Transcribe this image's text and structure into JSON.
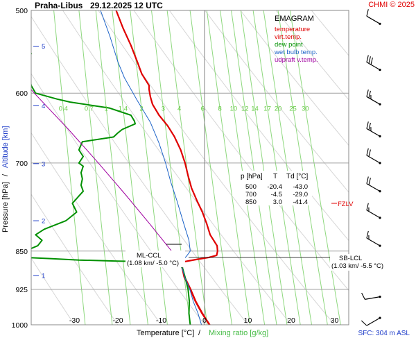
{
  "header": {
    "station": "Praha-Libus",
    "datetime": "29.12.2025 12 UTC",
    "credit": "CHMI © 2025"
  },
  "legend": {
    "title": "EMAGRAM",
    "items": [
      {
        "label": "temperature",
        "color": "#e00000"
      },
      {
        "label": "virt.temp.",
        "color": "#e00000"
      },
      {
        "label": "dew point",
        "color": "#009000"
      },
      {
        "label": "wet bulb temp.",
        "color": "#1e64c8"
      },
      {
        "label": "udpraft v.temp.",
        "color": "#a000a0"
      }
    ]
  },
  "table": {
    "headers": [
      "p [hPa]",
      "T",
      "Td [°C]"
    ],
    "rows": [
      [
        "500",
        "-20.4",
        "-43.0"
      ],
      [
        "700",
        "-4.5",
        "-29.0"
      ],
      [
        "850",
        "3.0",
        "-41.4"
      ]
    ]
  },
  "annotations": {
    "fzlv": "FZLV",
    "ml_ccl_line1": "ML-CCL",
    "ml_ccl_line2": "(1.08 km/ -5.0 °C)",
    "sb_lcl_line1": "SB-LCL",
    "sb_lcl_line2": "(1.03 km/ -5.5 °C)",
    "sfc": "SFC: 304 m ASL"
  },
  "axes": {
    "xlabel_temp": "Temperature [°C]",
    "xlabel_sep": "/",
    "xlabel_mix": "Mixing ratio [g/kg]",
    "ylabel_pres": "Pressure [hPa]",
    "ylabel_sep": "/",
    "ylabel_alt": "Altitude [km]"
  },
  "chart_data": {
    "type": "line",
    "title": "EMAGRAM Praha-Libus 29.12.2025 12 UTC",
    "y_axis": "pressure_hPa",
    "ylim": [
      1000,
      500
    ],
    "xlim": [
      -40,
      33
    ],
    "pressure_ticks": [
      500,
      600,
      700,
      850,
      925,
      1000
    ],
    "temperature_ticks": [
      -30,
      -20,
      -10,
      0,
      10,
      20,
      30
    ],
    "altitude_ticks_km": [
      {
        "label": "1",
        "p": 897
      },
      {
        "label": "2",
        "p": 795
      },
      {
        "label": "3",
        "p": 701
      },
      {
        "label": "4",
        "p": 617
      },
      {
        "label": "5",
        "p": 541
      }
    ],
    "mixing_ratio_lines": [
      0.4,
      0.7,
      1,
      1.4,
      2,
      3,
      4,
      6,
      8,
      10,
      12,
      14,
      17,
      20,
      25,
      30
    ],
    "mixing_ratio_label_pressure": 620,
    "series": [
      {
        "name": "temperature",
        "color": "#e00000",
        "points": [
          [
            1000,
            1.2
          ],
          [
            990,
            0.5
          ],
          [
            975,
            -0.5
          ],
          [
            950,
            -2
          ],
          [
            925,
            -3.2
          ],
          [
            900,
            -4.6
          ],
          [
            880,
            -5.2
          ],
          [
            871,
            -5.2
          ],
          [
            866,
            -2
          ],
          [
            862,
            1
          ],
          [
            858,
            2.8
          ],
          [
            850,
            3.0
          ],
          [
            840,
            2.9
          ],
          [
            820,
            1.3
          ],
          [
            800,
            0.5
          ],
          [
            780,
            -0.5
          ],
          [
            760,
            -1.8
          ],
          [
            740,
            -3
          ],
          [
            720,
            -3.8
          ],
          [
            700,
            -4.5
          ],
          [
            680,
            -5.5
          ],
          [
            660,
            -7
          ],
          [
            645,
            -8.5
          ],
          [
            630,
            -10.5
          ],
          [
            615,
            -12
          ],
          [
            605,
            -12.5
          ],
          [
            595,
            -12.8
          ],
          [
            590,
            -12.8
          ],
          [
            575,
            -14.5
          ],
          [
            560,
            -15.5
          ],
          [
            540,
            -17
          ],
          [
            520,
            -18.8
          ],
          [
            500,
            -20.4
          ]
        ]
      },
      {
        "name": "virt.temp.",
        "color": "#e00000",
        "points": [
          [
            1000,
            1.0
          ],
          [
            975,
            -0.7
          ],
          [
            950,
            -2.2
          ],
          [
            925,
            -3.4
          ],
          [
            900,
            -4.8
          ],
          [
            880,
            -5.3
          ],
          [
            871,
            -5.3
          ]
        ]
      },
      {
        "name": "dew point",
        "color": "#009000",
        "points": [
          [
            1000,
            -3.3
          ],
          [
            975,
            -3.6
          ],
          [
            950,
            -3.5
          ],
          [
            925,
            -3.8
          ],
          [
            900,
            -4.5
          ],
          [
            885,
            -5
          ],
          [
            875,
            -5.6
          ],
          [
            871,
            -5.7
          ],
          [
            869,
            -20
          ],
          [
            867,
            -29
          ],
          [
            864,
            -36
          ],
          [
            861,
            -44
          ],
          [
            850,
            -41.4
          ],
          [
            840,
            -38.5
          ],
          [
            830,
            -37.5
          ],
          [
            820,
            -39
          ],
          [
            810,
            -37
          ],
          [
            795,
            -32
          ],
          [
            780,
            -29.5
          ],
          [
            765,
            -30.5
          ],
          [
            745,
            -28
          ],
          [
            735,
            -28.5
          ],
          [
            725,
            -28.2
          ],
          [
            715,
            -28.5
          ],
          [
            705,
            -28
          ],
          [
            700,
            -29
          ],
          [
            690,
            -28
          ],
          [
            680,
            -29
          ],
          [
            668,
            -28.2
          ],
          [
            661,
            -21
          ],
          [
            655,
            -20
          ],
          [
            650,
            -19
          ],
          [
            642,
            -16
          ],
          [
            638,
            -16.2
          ],
          [
            630,
            -17
          ],
          [
            620,
            -22
          ],
          [
            612,
            -31
          ],
          [
            608,
            -34
          ],
          [
            600,
            -39
          ],
          [
            590,
            -40
          ],
          [
            575,
            -40.5
          ],
          [
            560,
            -41
          ],
          [
            550,
            -40
          ],
          [
            545,
            -41
          ],
          [
            540,
            -41
          ],
          [
            530,
            -43
          ],
          [
            520,
            -43
          ],
          [
            500,
            -43.0
          ]
        ]
      },
      {
        "name": "wet bulb temp.",
        "color": "#1e64c8",
        "points": [
          [
            1000,
            -0.7
          ],
          [
            975,
            -1.5
          ],
          [
            950,
            -2.6
          ],
          [
            925,
            -3.4
          ],
          [
            900,
            -4.6
          ],
          [
            871,
            -5.5
          ],
          [
            860,
            -4.2
          ],
          [
            850,
            -3.3
          ],
          [
            830,
            -3.6
          ],
          [
            800,
            -4.8
          ],
          [
            760,
            -6.4
          ],
          [
            730,
            -7.8
          ],
          [
            700,
            -9
          ],
          [
            670,
            -10.5
          ],
          [
            640,
            -12.5
          ],
          [
            610,
            -15.5
          ],
          [
            580,
            -18.5
          ],
          [
            560,
            -20
          ],
          [
            530,
            -21.8
          ],
          [
            500,
            -24
          ]
        ]
      },
      {
        "name": "udpraft v.temp.",
        "color": "#a000a0",
        "points": [
          [
            871,
            -5.3
          ],
          [
            850,
            -7.6
          ],
          [
            800,
            -12.7
          ],
          [
            750,
            -18.3
          ],
          [
            700,
            -24.5
          ],
          [
            650,
            -31.4
          ],
          [
            600,
            -39.3
          ],
          [
            500,
            -56
          ]
        ]
      }
    ],
    "levels": [
      {
        "name": "FZLV",
        "p": 780
      },
      {
        "name": "ML-CCL",
        "p": 871,
        "t": -5.0
      },
      {
        "name": "SB-LCL",
        "p": 876,
        "t": -5.5
      }
    ],
    "wind_barbs": [
      {
        "p": 940,
        "dir_deg": 260,
        "speed_kt": 10
      },
      {
        "p": 985,
        "dir_deg": 240,
        "speed_kt": 10
      },
      {
        "p": 515,
        "dir_deg": 300,
        "speed_kt": 10
      },
      {
        "p": 570,
        "dir_deg": 300,
        "speed_kt": 30
      },
      {
        "p": 615,
        "dir_deg": 300,
        "speed_kt": 25
      },
      {
        "p": 660,
        "dir_deg": 300,
        "speed_kt": 25
      },
      {
        "p": 700,
        "dir_deg": 300,
        "speed_kt": 20
      },
      {
        "p": 745,
        "dir_deg": 300,
        "speed_kt": 20
      },
      {
        "p": 790,
        "dir_deg": 300,
        "speed_kt": 15
      },
      {
        "p": 840,
        "dir_deg": 300,
        "speed_kt": 15
      },
      {
        "p": 885,
        "dir_deg": 300,
        "speed_kt": 15
      }
    ]
  }
}
